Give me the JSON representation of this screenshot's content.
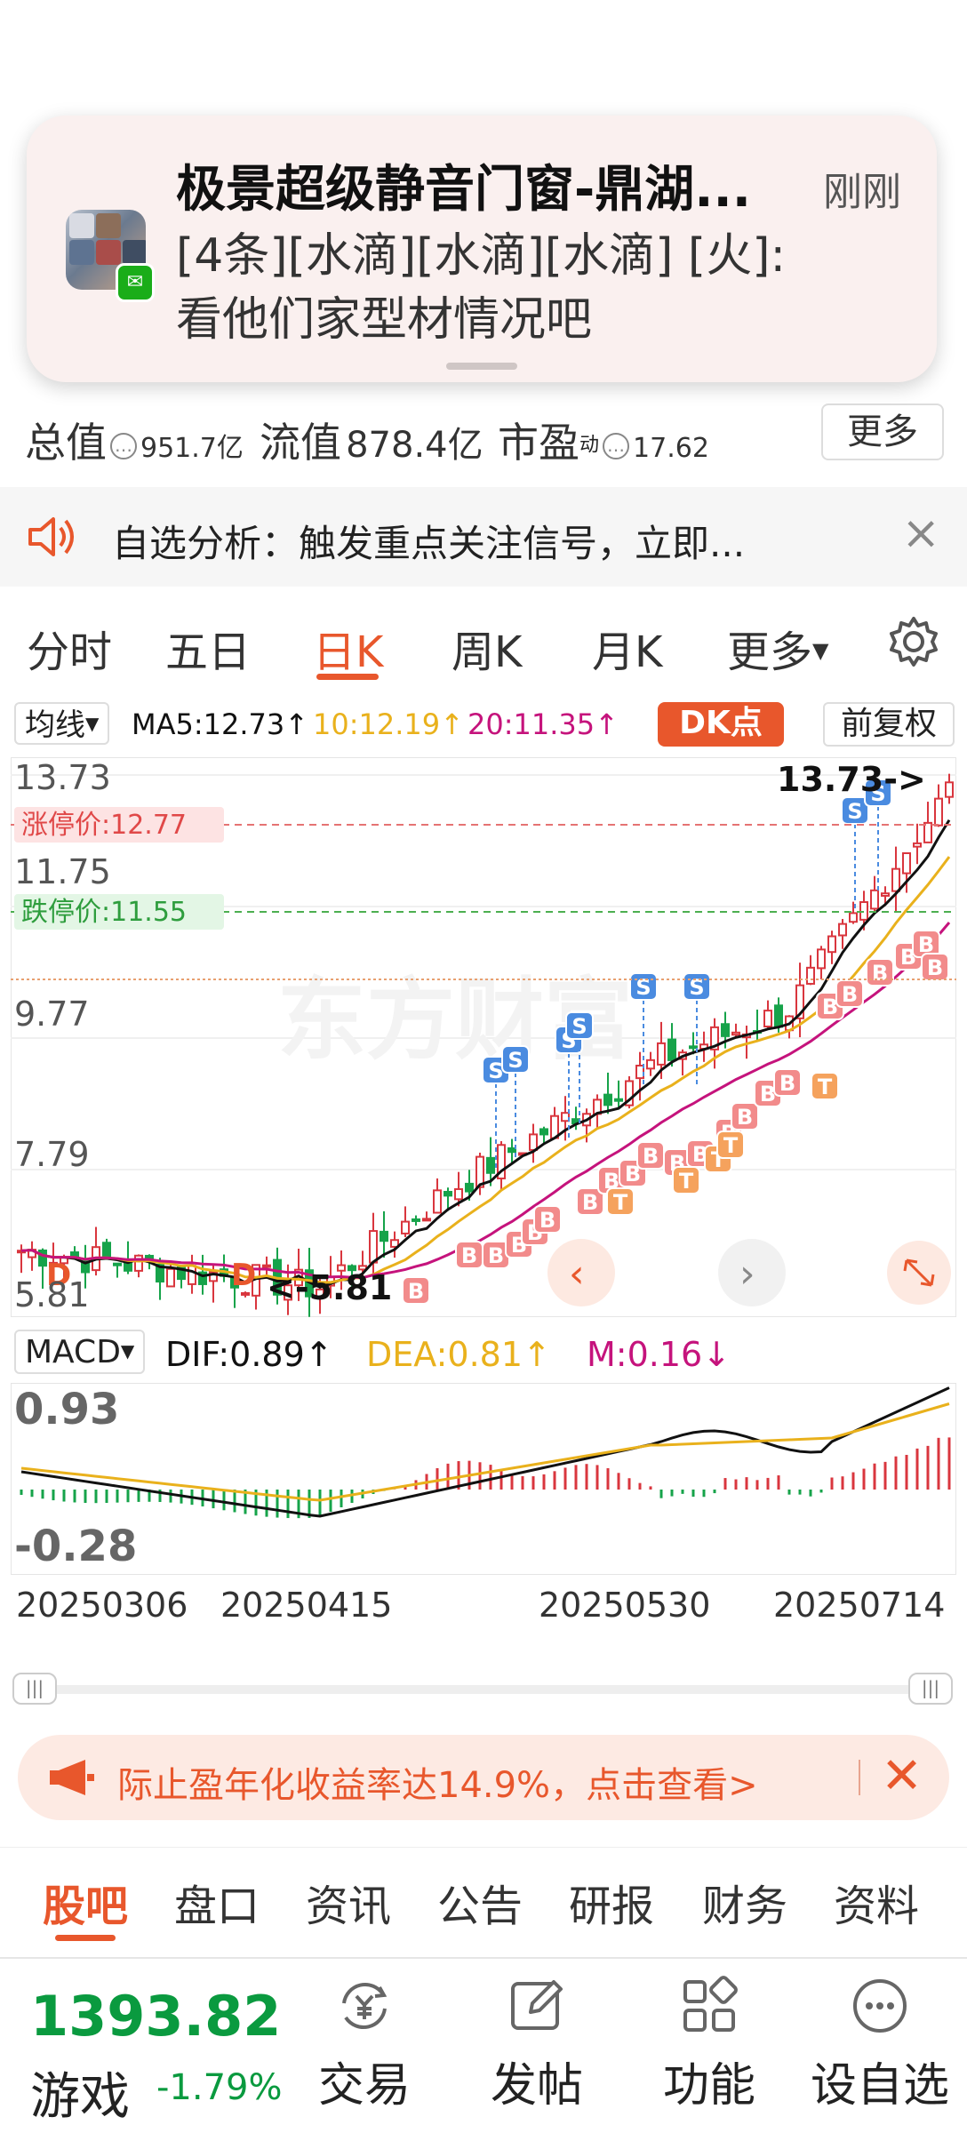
{
  "notification": {
    "title": "极景超级静音门窗-鼎湖...",
    "time": "刚刚",
    "body_line1": "[4条][水滴][水滴][水滴] [火]:",
    "body_line2": "看他们家型材情况吧"
  },
  "stats": {
    "total_label": "总值",
    "total_value": "951.7亿",
    "float_label": "流值",
    "float_value": "878.4亿",
    "pe_label": "市盈",
    "pe_sup": "动",
    "pe_value": "17.62",
    "more_label": "更多"
  },
  "alert": {
    "text": "自选分析：触发重点关注信号，立即...",
    "close": "×"
  },
  "periods": {
    "items": [
      "分时",
      "五日",
      "日K",
      "周K",
      "月K",
      "更多"
    ],
    "active": "日K"
  },
  "ma": {
    "select_label": "均线",
    "ma5": "MA5:12.73↑",
    "ma10": "10:12.19↑",
    "ma20": "20:11.35↑",
    "dk_label": "DK点",
    "fq_label": "前复权",
    "colors": {
      "ma5": "#111111",
      "ma10": "#e9b11c",
      "ma20": "#c5137c",
      "up": "#d9363e",
      "down": "#16a34a"
    }
  },
  "kchart": {
    "y_labels": [
      "13.73",
      "11.75",
      "9.77",
      "7.79",
      "5.81"
    ],
    "limit_up_label": "涨停价:12.77",
    "limit_down_label": "跌停价:11.55",
    "high_label": "13.73->",
    "low_label": "<-5.81",
    "watermark": "东方财富",
    "buy_marker": "B",
    "sell_marker": "S",
    "t_marker": "T",
    "d_marker": "D"
  },
  "macd": {
    "select_label": "MACD",
    "dif": "DIF:0.89↑",
    "dea": "DEA:0.81↑",
    "m": "M:0.16↓",
    "y_top": "0.93",
    "y_bottom": "-0.28"
  },
  "dates": [
    "20250306",
    "20250415",
    "20250530",
    "20250714"
  ],
  "promo": {
    "text": "际止盈年化收益率达14.9%，点击查看>"
  },
  "bottom_tabs": {
    "items": [
      "股吧",
      "盘口",
      "资讯",
      "公告",
      "研报",
      "财务",
      "资料"
    ],
    "active": "股吧"
  },
  "toolbar": {
    "index_value": "1393.82",
    "index_name": "游戏",
    "index_change": "-1.79%",
    "trade": "交易",
    "post": "发帖",
    "features": "功能",
    "watchlist": "设自选"
  }
}
